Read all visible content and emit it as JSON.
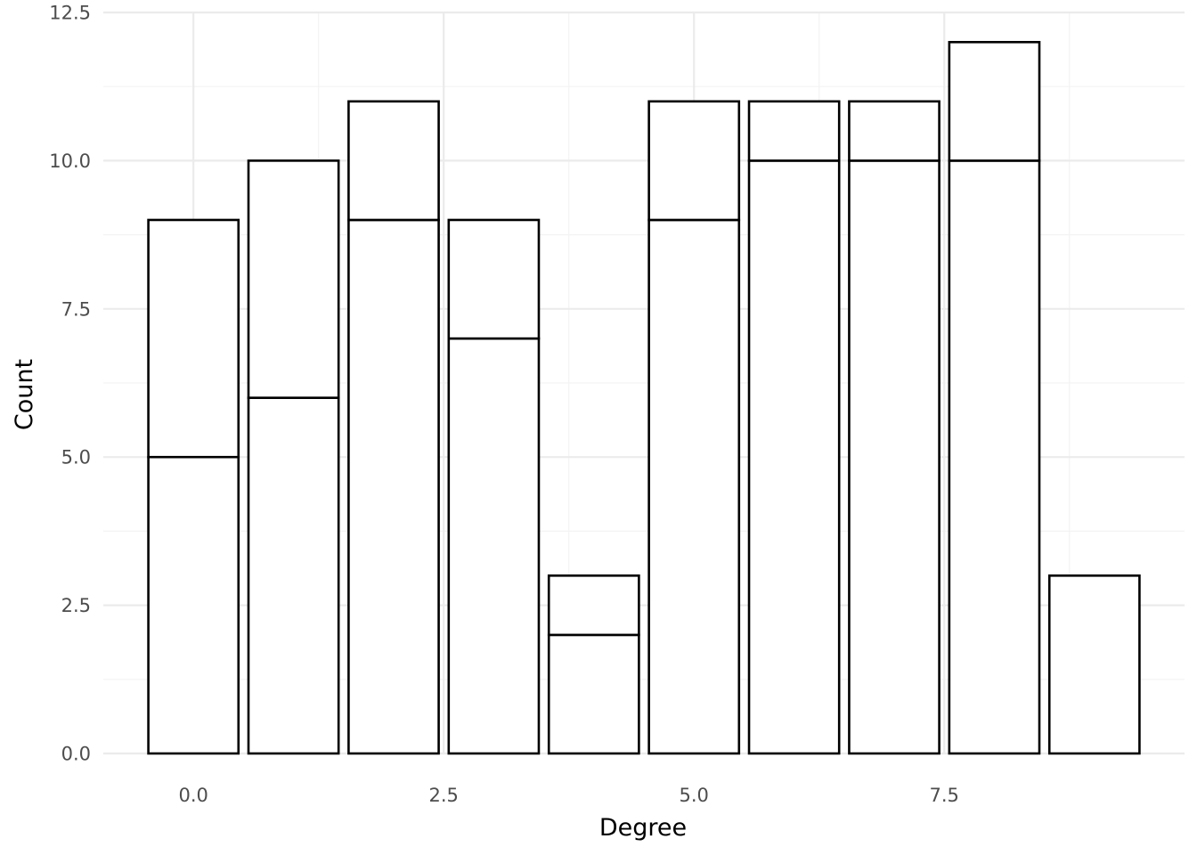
{
  "chart_data": {
    "type": "bar",
    "stacked": true,
    "title": "",
    "xlabel": "Degree",
    "ylabel": "Count",
    "x": [
      0,
      1,
      2,
      3,
      4,
      5,
      6,
      7,
      8,
      9
    ],
    "series": [
      {
        "values": [
          5,
          6,
          9,
          7,
          2,
          9,
          10,
          10,
          10,
          3
        ]
      },
      {
        "values": [
          4,
          4,
          2,
          2,
          1,
          2,
          1,
          1,
          2,
          0
        ]
      }
    ],
    "totals": [
      9,
      10,
      11,
      9,
      3,
      11,
      11,
      11,
      12,
      3
    ],
    "xlim": [
      -0.9,
      9.9
    ],
    "ylim": [
      0,
      12.5
    ],
    "x_ticks": [
      0,
      2.5,
      5,
      7.5
    ],
    "x_tick_labels": [
      "0.0",
      "2.5",
      "5.0",
      "7.5"
    ],
    "y_ticks": [
      0,
      2.5,
      5,
      7.5,
      10,
      12.5
    ],
    "y_tick_labels": [
      "0.0",
      "2.5",
      "5.0",
      "7.5",
      "10.0",
      "12.5"
    ],
    "grid": true,
    "legend": "none",
    "bar_fill": "#ffffff",
    "bar_outline": "#000000"
  }
}
